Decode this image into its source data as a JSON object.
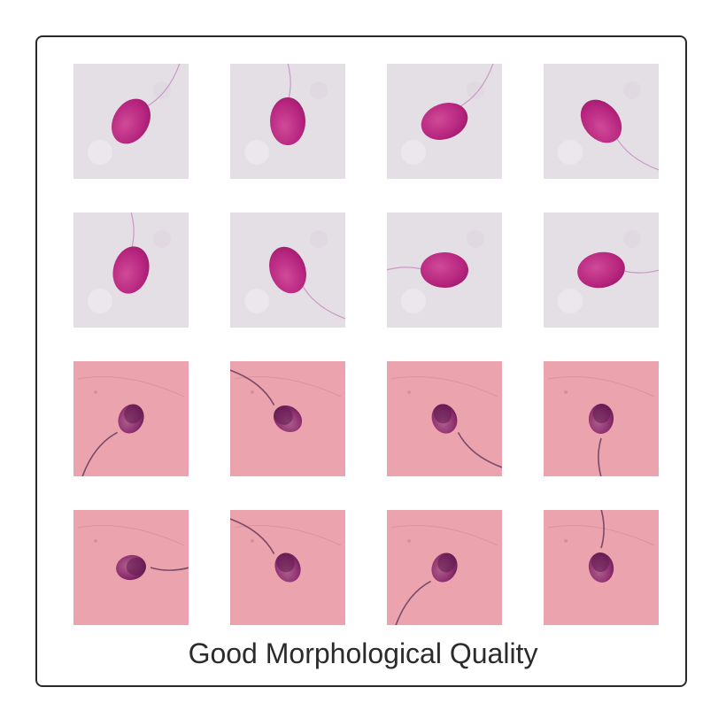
{
  "figure": {
    "caption": "Good Morphological Quality"
  },
  "colors": {
    "border": "#2a2a2a",
    "stain_pale_bg": "#e4dfe4",
    "stain_pink_bg": "#eba3ad",
    "head_magenta": "#b6247e",
    "head_dark": "#5c1a4c",
    "tail": "#7a4a6a"
  },
  "grid": {
    "rows": 4,
    "cols": 4,
    "tiles": [
      {
        "style": "pale",
        "head_angle": 30,
        "tail_dir": "up-right"
      },
      {
        "style": "pale",
        "head_angle": 0,
        "tail_dir": "up"
      },
      {
        "style": "pale",
        "head_angle": 70,
        "tail_dir": "up-right"
      },
      {
        "style": "pale",
        "head_angle": -40,
        "tail_dir": "down-right"
      },
      {
        "style": "pale",
        "head_angle": 15,
        "tail_dir": "up"
      },
      {
        "style": "pale",
        "head_angle": -20,
        "tail_dir": "down-right"
      },
      {
        "style": "pale",
        "head_angle": 90,
        "tail_dir": "left"
      },
      {
        "style": "pale",
        "head_angle": 80,
        "tail_dir": "right"
      },
      {
        "style": "pink",
        "head_angle": 25,
        "tail_dir": "down-left"
      },
      {
        "style": "pink",
        "head_angle": -55,
        "tail_dir": "up-left"
      },
      {
        "style": "pink",
        "head_angle": -20,
        "tail_dir": "down-right"
      },
      {
        "style": "pink",
        "head_angle": 5,
        "tail_dir": "down"
      },
      {
        "style": "pink",
        "head_angle": 80,
        "tail_dir": "right"
      },
      {
        "style": "pink",
        "head_angle": -25,
        "tail_dir": "up-left"
      },
      {
        "style": "pink",
        "head_angle": 25,
        "tail_dir": "down-left"
      },
      {
        "style": "pink",
        "head_angle": -10,
        "tail_dir": "up"
      }
    ]
  }
}
